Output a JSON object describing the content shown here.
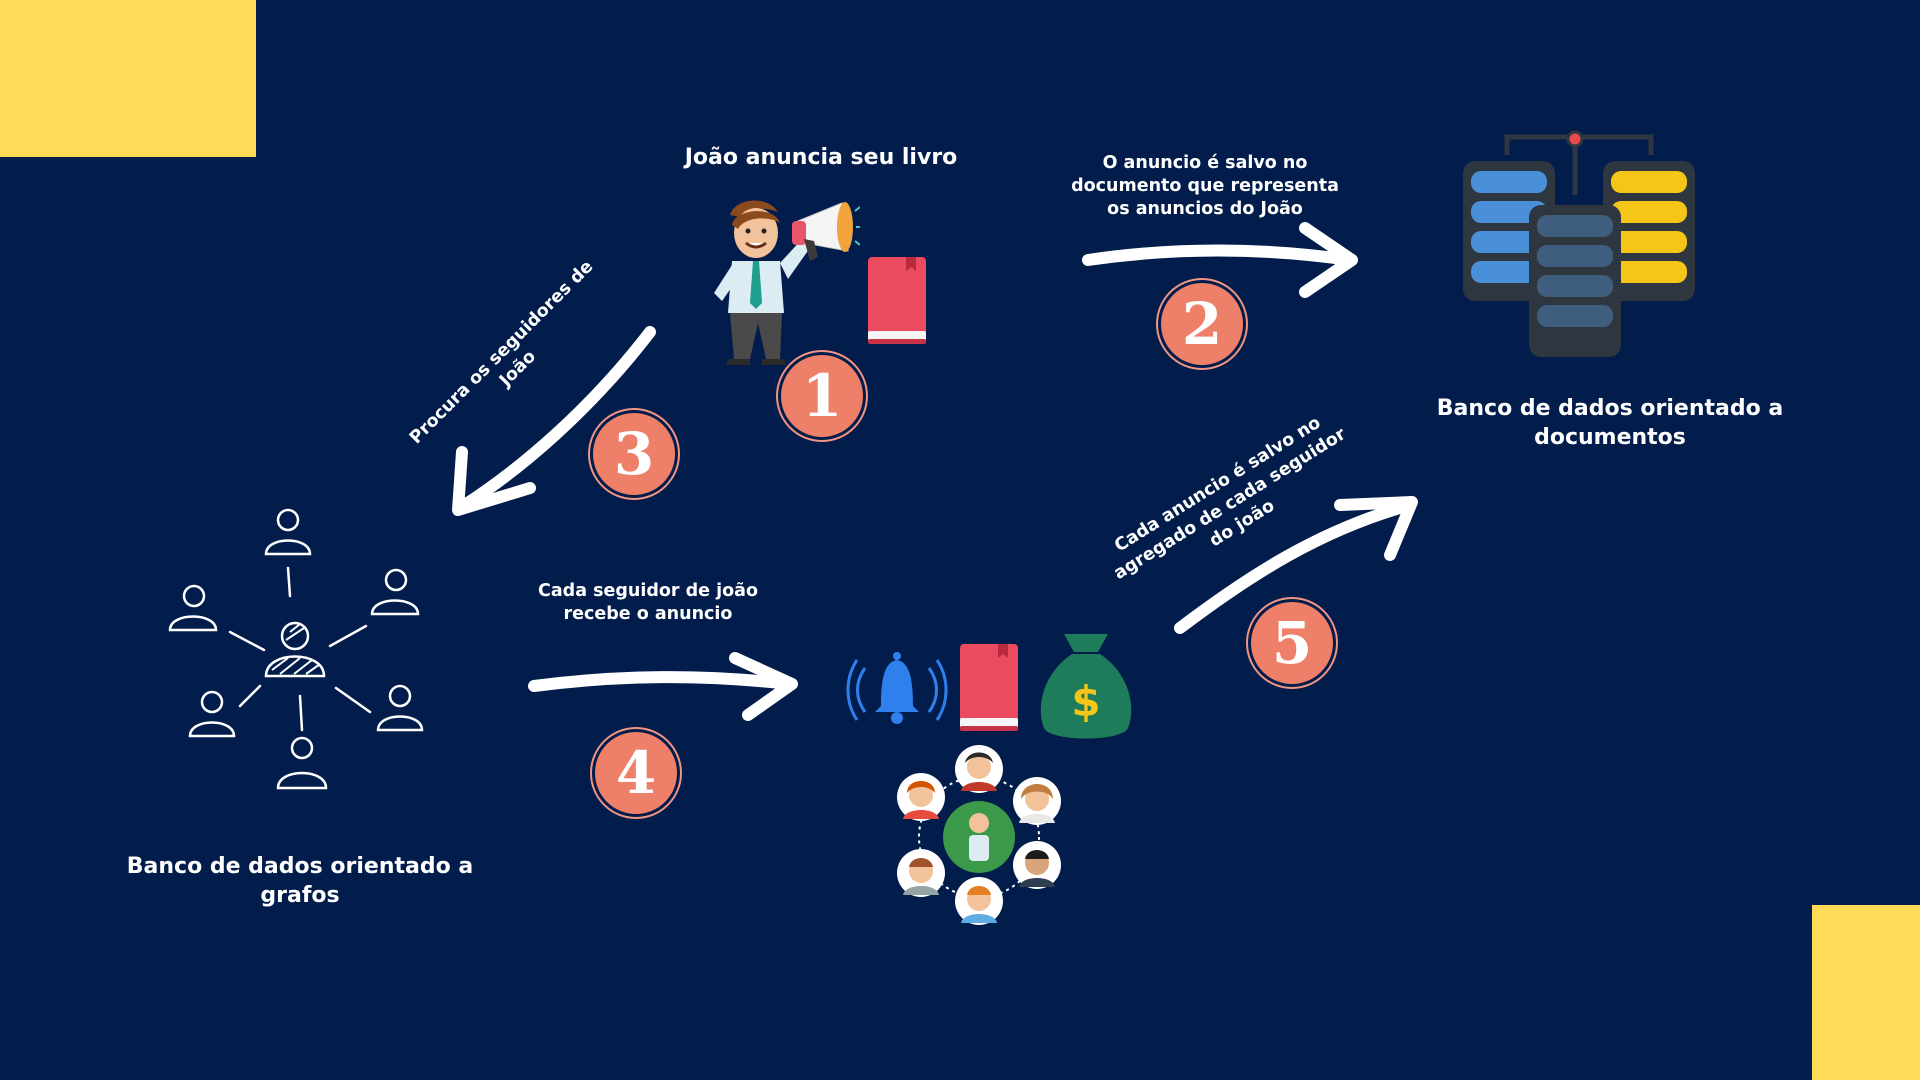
{
  "colors": {
    "background": "#021d4b",
    "corner_accent": "#ffdb58",
    "step_badge": "#ee7f68",
    "arrow": "#ffffff",
    "book": "#ec4a5f",
    "money_bag": "#1e7c5b",
    "bell": "#2f80ed",
    "db_blue": "#4a90d9",
    "db_yellow": "#f5c518",
    "db_dark": "#3b4b5e"
  },
  "titles": {
    "joao": "João anuncia seu livro",
    "doc_db": "Banco de dados orientado a documentos",
    "graph_db": "Banco de dados orientado a grafos"
  },
  "steps": [
    {
      "number": "1",
      "label": ""
    },
    {
      "number": "2",
      "label": "O anuncio é salvo no documento que representa os anuncios do João"
    },
    {
      "number": "3",
      "label": "Procura os seguidores de João"
    },
    {
      "number": "4",
      "label": "Cada seguidor de joão recebe o anuncio"
    },
    {
      "number": "5",
      "label": "Cada anuncio é salvo no agregado de cada seguidor do joão"
    }
  ],
  "step_lines": {
    "s2": [
      "O anuncio é salvo no",
      "documento que representa",
      "os anuncios do João"
    ],
    "s3": [
      "Procura os seguidores de",
      "João"
    ],
    "s4": [
      "Cada seguidor de joão",
      "recebe o anuncio"
    ],
    "s5": [
      "Cada anuncio é salvo no",
      "agregado de cada seguidor",
      "do joão"
    ]
  },
  "icons": [
    "man-megaphone-icon",
    "book-icon",
    "database-servers-icon",
    "people-network-icon",
    "bell-icon",
    "money-bag-icon",
    "followers-network-icon",
    "arrow-icon"
  ]
}
